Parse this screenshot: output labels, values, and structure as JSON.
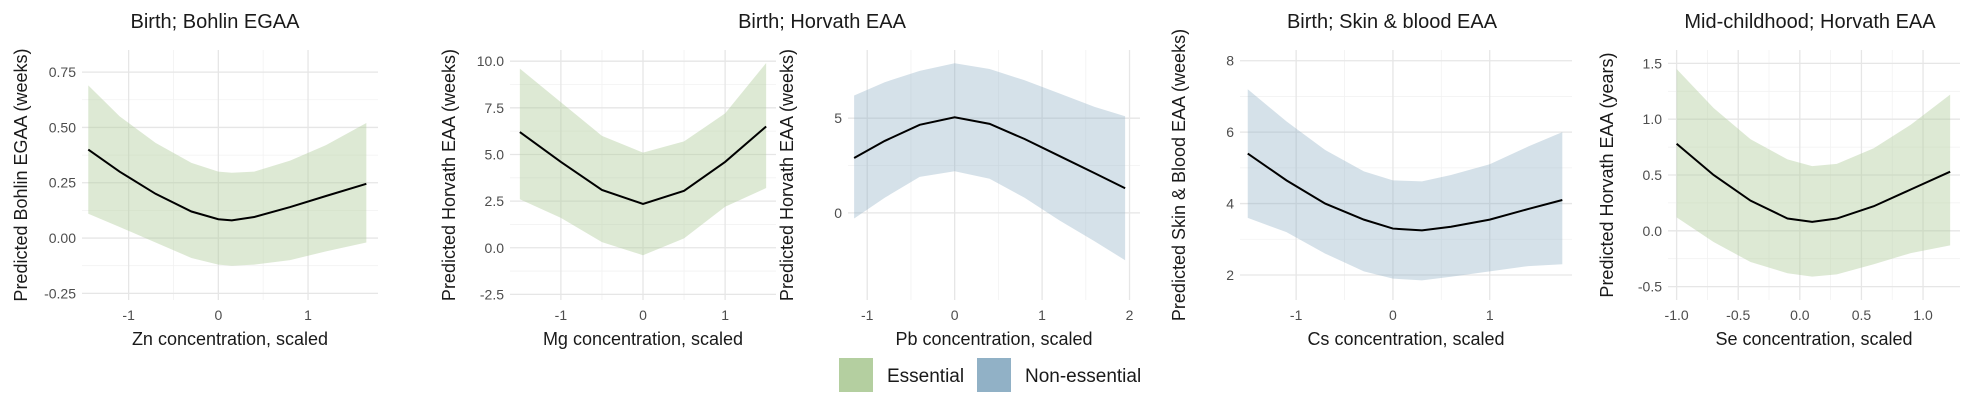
{
  "colors": {
    "essential": "#b4cfa0",
    "non_essential": "#91b1c6",
    "line": "#000000",
    "grid": "#ebebeb"
  },
  "panel_titles": {
    "p1": "Birth; Bohlin EGAA",
    "p23": "Birth; Horvath EAA",
    "p4": "Birth; Skin & blood EAA",
    "p5": "Mid-childhood; Horvath EAA"
  },
  "legend": {
    "essential": "Essential",
    "non_essential": "Non-essential"
  },
  "chart_data": [
    {
      "type": "line",
      "title": "Birth; Bohlin EGAA",
      "group": "essential",
      "xlabel": "Zn concentration, scaled",
      "ylabel": "Predicted Bohlin EGAA (weeks)",
      "xlim": [
        -1.52,
        1.78
      ],
      "ylim": [
        -0.28,
        0.85
      ],
      "xticks": [
        -1,
        0,
        1
      ],
      "xtick_labels": [
        "-1",
        "0",
        "1"
      ],
      "yticks": [
        -0.25,
        0,
        0.25,
        0.5,
        0.75
      ],
      "ytick_labels": [
        "-0.25",
        "0.00",
        "0.25",
        "0.50",
        "0.75"
      ],
      "x": [
        -1.45,
        -1.1,
        -0.7,
        -0.3,
        0.0,
        0.15,
        0.4,
        0.8,
        1.2,
        1.65
      ],
      "y": [
        0.4,
        0.3,
        0.2,
        0.12,
        0.085,
        0.08,
        0.095,
        0.14,
        0.19,
        0.245
      ],
      "lower": [
        0.11,
        0.05,
        -0.02,
        -0.09,
        -0.12,
        -0.125,
        -0.12,
        -0.1,
        -0.06,
        -0.02
      ],
      "upper": [
        0.69,
        0.55,
        0.43,
        0.34,
        0.3,
        0.295,
        0.3,
        0.35,
        0.42,
        0.52
      ]
    },
    {
      "type": "line",
      "title": "",
      "group": "essential",
      "xlabel": "Mg concentration, scaled",
      "ylabel": "Predicted Horvath EAA (weeks)",
      "xlim": [
        -1.62,
        1.62
      ],
      "ylim": [
        -2.8,
        10.6
      ],
      "xticks": [
        -1,
        0,
        1
      ],
      "xtick_labels": [
        "-1",
        "0",
        "1"
      ],
      "yticks": [
        -2.5,
        0,
        2.5,
        5,
        7.5,
        10
      ],
      "ytick_labels": [
        "-2.5",
        "0.0",
        "2.5",
        "5.0",
        "7.5",
        "10.0"
      ],
      "x": [
        -1.5,
        -1.0,
        -0.5,
        0.0,
        0.5,
        1.0,
        1.5
      ],
      "y": [
        6.2,
        4.6,
        3.1,
        2.35,
        3.05,
        4.6,
        6.5
      ],
      "lower": [
        2.6,
        1.6,
        0.3,
        -0.4,
        0.5,
        2.2,
        3.2
      ],
      "upper": [
        9.6,
        7.8,
        6.0,
        5.1,
        5.7,
        7.2,
        9.9
      ]
    },
    {
      "type": "line",
      "title": "",
      "group": "non_essential",
      "xlabel": "Pb concentration, scaled",
      "ylabel": "Predicted Horvath EAA (weeks)",
      "xlim": [
        -1.22,
        2.12
      ],
      "ylim": [
        -4.6,
        8.6
      ],
      "xticks": [
        -1,
        0,
        1,
        2
      ],
      "xtick_labels": [
        "-1",
        "0",
        "1",
        "2"
      ],
      "yticks": [
        0,
        5
      ],
      "ytick_labels": [
        "0",
        "5"
      ],
      "x": [
        -1.15,
        -0.8,
        -0.4,
        0.0,
        0.4,
        0.8,
        1.2,
        1.6,
        1.95
      ],
      "y": [
        2.9,
        3.8,
        4.65,
        5.05,
        4.7,
        3.9,
        3.0,
        2.1,
        1.3
      ],
      "lower": [
        -0.3,
        0.8,
        1.9,
        2.2,
        1.8,
        0.8,
        -0.4,
        -1.5,
        -2.5
      ],
      "upper": [
        6.2,
        6.9,
        7.5,
        7.9,
        7.6,
        7.0,
        6.3,
        5.6,
        5.1
      ]
    },
    {
      "type": "line",
      "title": "Birth; Skin & blood EAA",
      "group": "non_essential",
      "xlabel": "Cs concentration, scaled",
      "ylabel": "Predicted Skin & Blood EAA (weeks)",
      "xlim": [
        -1.58,
        1.85
      ],
      "ylim": [
        1.3,
        8.3
      ],
      "xticks": [
        -1,
        0,
        1
      ],
      "xtick_labels": [
        "-1",
        "0",
        "1"
      ],
      "yticks": [
        2,
        4,
        6,
        8
      ],
      "ytick_labels": [
        "2",
        "4",
        "6",
        "8"
      ],
      "x": [
        -1.5,
        -1.1,
        -0.7,
        -0.3,
        0.0,
        0.3,
        0.6,
        1.0,
        1.4,
        1.75
      ],
      "y": [
        5.4,
        4.65,
        4.0,
        3.55,
        3.3,
        3.25,
        3.35,
        3.55,
        3.85,
        4.1
      ],
      "lower": [
        3.6,
        3.2,
        2.6,
        2.1,
        1.9,
        1.85,
        1.95,
        2.1,
        2.25,
        2.3
      ],
      "upper": [
        7.2,
        6.3,
        5.5,
        4.9,
        4.65,
        4.62,
        4.8,
        5.1,
        5.6,
        6.0
      ]
    },
    {
      "type": "line",
      "title": "Mid-childhood; Horvath EAA",
      "group": "essential",
      "xlabel": "Se concentration, scaled",
      "ylabel": "Predicted Horvath EAA (years)",
      "xlim": [
        -1.07,
        1.3
      ],
      "ylim": [
        -0.62,
        1.62
      ],
      "xticks": [
        -1,
        -0.5,
        0,
        0.5,
        1
      ],
      "xtick_labels": [
        "-1.0",
        "-0.5",
        "0.0",
        "0.5",
        "1.0"
      ],
      "yticks": [
        -0.5,
        0,
        0.5,
        1,
        1.5
      ],
      "ytick_labels": [
        "-0.5",
        "0.0",
        "0.5",
        "1.0",
        "1.5"
      ],
      "x": [
        -1.0,
        -0.7,
        -0.4,
        -0.1,
        0.1,
        0.3,
        0.6,
        0.9,
        1.22
      ],
      "y": [
        0.78,
        0.5,
        0.27,
        0.11,
        0.08,
        0.11,
        0.22,
        0.37,
        0.53
      ],
      "lower": [
        0.12,
        -0.1,
        -0.28,
        -0.38,
        -0.41,
        -0.39,
        -0.3,
        -0.2,
        -0.13
      ],
      "upper": [
        1.45,
        1.1,
        0.82,
        0.64,
        0.58,
        0.6,
        0.74,
        0.95,
        1.22
      ]
    }
  ]
}
